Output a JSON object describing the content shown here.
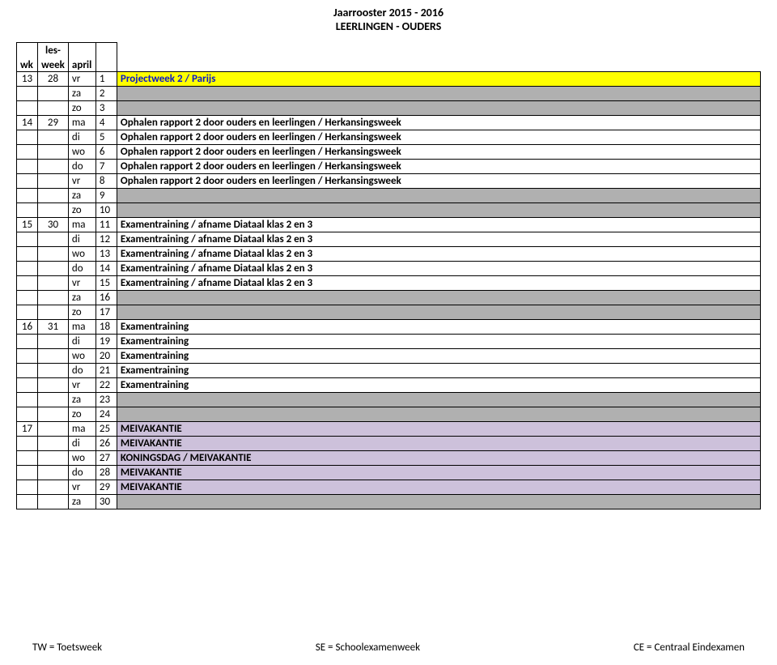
{
  "header": {
    "line1": "Jaarrooster 2015 - 2016",
    "line2": "LEERLINGEN - OUDERS"
  },
  "columns": {
    "wk": "wk",
    "les_top": "les-",
    "les_bot": "week",
    "month": "april"
  },
  "rows": [
    {
      "wk": "13",
      "lw": "28",
      "day": "vr",
      "num": "1",
      "desc": "Projectweek 2 / Parijs",
      "style": "yellow"
    },
    {
      "wk": "",
      "lw": "",
      "day": "za",
      "num": "2",
      "desc": "",
      "style": "grey"
    },
    {
      "wk": "",
      "lw": "",
      "day": "zo",
      "num": "3",
      "desc": "",
      "style": "grey"
    },
    {
      "wk": "14",
      "lw": "29",
      "day": "ma",
      "num": "4",
      "desc": "Ophalen rapport 2 door ouders en leerlingen / Herkansingsweek",
      "style": "normal"
    },
    {
      "wk": "",
      "lw": "",
      "day": "di",
      "num": "5",
      "desc": "Ophalen rapport 2 door ouders en leerlingen / Herkansingsweek",
      "style": "normal"
    },
    {
      "wk": "",
      "lw": "",
      "day": "wo",
      "num": "6",
      "desc": "Ophalen rapport 2 door ouders en leerlingen / Herkansingsweek",
      "style": "normal"
    },
    {
      "wk": "",
      "lw": "",
      "day": "do",
      "num": "7",
      "desc": "Ophalen rapport 2 door ouders en leerlingen / Herkansingsweek",
      "style": "normal"
    },
    {
      "wk": "",
      "lw": "",
      "day": "vr",
      "num": "8",
      "desc": "Ophalen rapport 2 door ouders en leerlingen / Herkansingsweek",
      "style": "normal"
    },
    {
      "wk": "",
      "lw": "",
      "day": "za",
      "num": "9",
      "desc": "",
      "style": "grey"
    },
    {
      "wk": "",
      "lw": "",
      "day": "zo",
      "num": "10",
      "desc": "",
      "style": "grey"
    },
    {
      "wk": "15",
      "lw": "30",
      "day": "ma",
      "num": "11",
      "desc": "Examentraining / afname Diataal klas 2 en 3",
      "style": "normal"
    },
    {
      "wk": "",
      "lw": "",
      "day": "di",
      "num": "12",
      "desc": "Examentraining / afname Diataal klas 2 en 3",
      "style": "normal"
    },
    {
      "wk": "",
      "lw": "",
      "day": "wo",
      "num": "13",
      "desc": "Examentraining / afname Diataal klas 2 en 3",
      "style": "normal"
    },
    {
      "wk": "",
      "lw": "",
      "day": "do",
      "num": "14",
      "desc": "Examentraining / afname Diataal klas 2 en 3",
      "style": "normal"
    },
    {
      "wk": "",
      "lw": "",
      "day": "vr",
      "num": "15",
      "desc": "Examentraining / afname Diataal klas 2 en 3",
      "style": "normal"
    },
    {
      "wk": "",
      "lw": "",
      "day": "za",
      "num": "16",
      "desc": "",
      "style": "grey"
    },
    {
      "wk": "",
      "lw": "",
      "day": "zo",
      "num": "17",
      "desc": "",
      "style": "grey"
    },
    {
      "wk": "16",
      "lw": "31",
      "day": "ma",
      "num": "18",
      "desc": "Examentraining",
      "style": "normal"
    },
    {
      "wk": "",
      "lw": "",
      "day": "di",
      "num": "19",
      "desc": "Examentraining",
      "style": "normal"
    },
    {
      "wk": "",
      "lw": "",
      "day": "wo",
      "num": "20",
      "desc": "Examentraining",
      "style": "normal"
    },
    {
      "wk": "",
      "lw": "",
      "day": "do",
      "num": "21",
      "desc": "Examentraining",
      "style": "normal"
    },
    {
      "wk": "",
      "lw": "",
      "day": "vr",
      "num": "22",
      "desc": "Examentraining",
      "style": "normal"
    },
    {
      "wk": "",
      "lw": "",
      "day": "za",
      "num": "23",
      "desc": "",
      "style": "grey"
    },
    {
      "wk": "",
      "lw": "",
      "day": "zo",
      "num": "24",
      "desc": "",
      "style": "grey"
    },
    {
      "wk": "17",
      "lw": "",
      "day": "ma",
      "num": "25",
      "desc": "MEIVAKANTIE",
      "style": "purple"
    },
    {
      "wk": "",
      "lw": "",
      "day": "di",
      "num": "26",
      "desc": "MEIVAKANTIE",
      "style": "purple"
    },
    {
      "wk": "",
      "lw": "",
      "day": "wo",
      "num": "27",
      "desc": "KONINGSDAG / MEIVAKANTIE",
      "style": "purple"
    },
    {
      "wk": "",
      "lw": "",
      "day": "do",
      "num": "28",
      "desc": "MEIVAKANTIE",
      "style": "purple"
    },
    {
      "wk": "",
      "lw": "",
      "day": "vr",
      "num": "29",
      "desc": "MEIVAKANTIE",
      "style": "purple"
    },
    {
      "wk": "",
      "lw": "",
      "day": "za",
      "num": "30",
      "desc": "",
      "style": "grey"
    }
  ],
  "styles": {
    "yellow_bg": "#ffff00",
    "yellow_fg": "#0916cc",
    "grey_bg": "#b0b0b0",
    "purple_bg": "#cdc1db",
    "border": "#000000"
  },
  "footer": {
    "left": "TW = Toetsweek",
    "mid": "SE = Schoolexamenweek",
    "right": "CE = Centraal Eindexamen"
  }
}
